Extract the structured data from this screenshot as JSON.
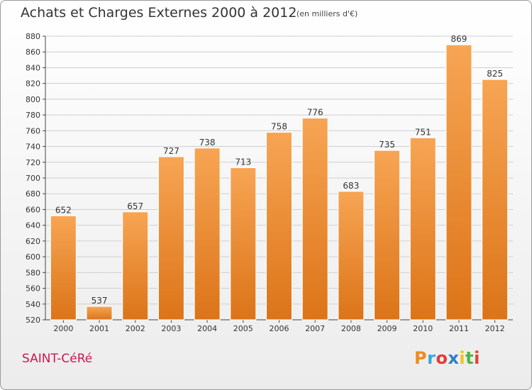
{
  "header": {
    "title": "Achats et Charges Externes 2000 à 2012",
    "subtitle": "(en milliers d'€)"
  },
  "footer": {
    "place": "SAINT-CéRé",
    "logo_text": "Proxiti",
    "logo_colors": [
      "#f08a1c",
      "#3aa6dd",
      "#e23b3b",
      "#2f7ec9",
      "#f2c21b",
      "#4bb443",
      "#e7402f"
    ]
  },
  "colors": {
    "bar_top": "#f7a554",
    "bar_bottom": "#dc7418",
    "grid": "#cfcfcf",
    "axis": "#444444"
  },
  "chart_data": {
    "type": "bar",
    "categories": [
      "2000",
      "2001",
      "2002",
      "2003",
      "2004",
      "2005",
      "2006",
      "2007",
      "2008",
      "2009",
      "2010",
      "2011",
      "2012"
    ],
    "values": [
      652,
      537,
      657,
      727,
      738,
      713,
      758,
      776,
      683,
      735,
      751,
      869,
      825
    ],
    "title": "Achats et Charges Externes 2000 à 2012",
    "subtitle": "(en milliers d'€)",
    "xlabel": "",
    "ylabel": "",
    "ylim": [
      520,
      880
    ],
    "yticks": [
      520,
      540,
      560,
      580,
      600,
      620,
      640,
      660,
      680,
      700,
      720,
      740,
      760,
      780,
      800,
      820,
      840,
      860,
      880
    ],
    "grid": true,
    "data_labels": true
  }
}
